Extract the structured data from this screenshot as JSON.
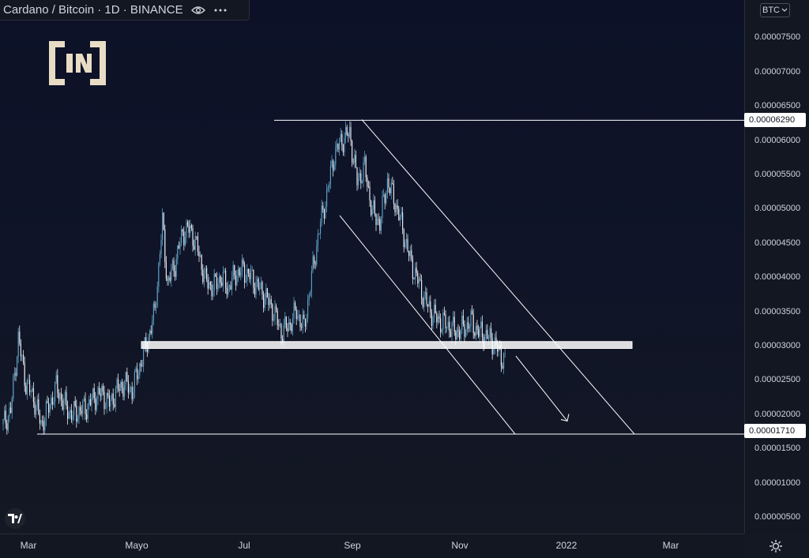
{
  "header": {
    "title": "Cardano / Bitcoin · 1D · BINANCE"
  },
  "currency_button": "BTC",
  "colors": {
    "background": "#0f1428",
    "candle_up": "#5b9cc0",
    "candle_down": "#e8e8ec",
    "lines": "#ffffff"
  },
  "icons": [
    "eye-icon",
    "more-icon",
    "beincrypto-logo",
    "tradingview-logo-icon",
    "gear-icon",
    "chevron-down-icon"
  ],
  "chart_data": {
    "type": "candlestick",
    "symbol": "Cardano / Bitcoin",
    "interval": "1D",
    "exchange": "BINANCE",
    "ylim": [
      2e-07,
      8.1e-06
    ],
    "y_ticks": [
      "0.00007500",
      "0.00007000",
      "0.00006500",
      "0.00006000",
      "0.00005500",
      "0.00005000",
      "0.00004500",
      "0.00004000",
      "0.00003500",
      "0.00003000",
      "0.00002500",
      "0.00002000",
      "0.00001500",
      "0.00001000",
      "0.00000500"
    ],
    "y_tick_values": [
      7.5e-05,
      7e-05,
      6.5e-05,
      6e-05,
      5.5e-05,
      5e-05,
      4.5e-05,
      4e-05,
      3.5e-05,
      3e-05,
      2.5e-05,
      2e-05,
      1.5e-05,
      1e-05,
      5e-06
    ],
    "x_ticks": [
      "Mar",
      "Mayo",
      "Jul",
      "Sep",
      "Nov",
      "2022",
      "Mar"
    ],
    "price_tags": [
      "0.00006290",
      "0.00001710"
    ],
    "horizontal_levels": [
      6.29e-05,
      1.71e-05
    ],
    "support_zone": [
      2.96e-05,
      3.06e-05
    ],
    "series_close": [
      [
        0,
        1.85e-05
      ],
      [
        6,
        2.05e-05
      ],
      [
        12,
        3.1e-05
      ],
      [
        18,
        2.45e-05
      ],
      [
        24,
        2.25e-05
      ],
      [
        30,
        1.85e-05
      ],
      [
        36,
        2.1e-05
      ],
      [
        42,
        2.4e-05
      ],
      [
        48,
        2.15e-05
      ],
      [
        54,
        2e-05
      ],
      [
        60,
        2.05e-05
      ],
      [
        66,
        2.1e-05
      ],
      [
        72,
        2.25e-05
      ],
      [
        78,
        2.3e-05
      ],
      [
        84,
        2.15e-05
      ],
      [
        90,
        2.35e-05
      ],
      [
        96,
        2.45e-05
      ],
      [
        102,
        2.35e-05
      ],
      [
        108,
        2.7e-05
      ],
      [
        114,
        3.05e-05
      ],
      [
        120,
        3.5e-05
      ],
      [
        126,
        4.8e-05
      ],
      [
        130,
        3.9e-05
      ],
      [
        136,
        4.2e-05
      ],
      [
        142,
        4.65e-05
      ],
      [
        148,
        4.7e-05
      ],
      [
        154,
        4.4e-05
      ],
      [
        160,
        3.95e-05
      ],
      [
        166,
        3.85e-05
      ],
      [
        172,
        4e-05
      ],
      [
        178,
        3.85e-05
      ],
      [
        184,
        4.05e-05
      ],
      [
        190,
        4.1e-05
      ],
      [
        196,
        4e-05
      ],
      [
        202,
        3.85e-05
      ],
      [
        208,
        3.7e-05
      ],
      [
        214,
        3.5e-05
      ],
      [
        220,
        3.2e-05
      ],
      [
        226,
        3.3e-05
      ],
      [
        232,
        3.5e-05
      ],
      [
        238,
        3.25e-05
      ],
      [
        244,
        4e-05
      ],
      [
        250,
        4.7e-05
      ],
      [
        256,
        5.2e-05
      ],
      [
        262,
        5.8e-05
      ],
      [
        268,
        6e-05
      ],
      [
        274,
        6.1e-05
      ],
      [
        280,
        5.4e-05
      ],
      [
        286,
        5.6e-05
      ],
      [
        292,
        4.95e-05
      ],
      [
        298,
        4.8e-05
      ],
      [
        304,
        5.4e-05
      ],
      [
        310,
        5.1e-05
      ],
      [
        316,
        4.7e-05
      ],
      [
        322,
        4.25e-05
      ],
      [
        328,
        3.95e-05
      ],
      [
        334,
        3.65e-05
      ],
      [
        340,
        3.45e-05
      ],
      [
        346,
        3.35e-05
      ],
      [
        352,
        3.3e-05
      ],
      [
        358,
        3.2e-05
      ],
      [
        364,
        3.25e-05
      ],
      [
        370,
        3.35e-05
      ],
      [
        376,
        3.2e-05
      ],
      [
        382,
        3.15e-05
      ],
      [
        388,
        3.05e-05
      ],
      [
        394,
        2.85e-05
      ],
      [
        398,
        2.75e-05
      ]
    ]
  }
}
